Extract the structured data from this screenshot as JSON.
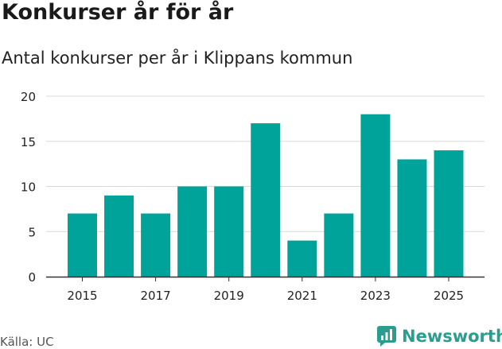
{
  "title": "Konkurser år för år",
  "subtitle": "Antal konkurser per år i Klippans kommun",
  "source": "Källa: UC",
  "brand": "Newsworthy",
  "icon": "newsworthy-logo-icon",
  "colors": {
    "bar": "#00a39a",
    "brand": "#2a9d8f",
    "grid": "#d9d9d9",
    "axis": "#333333",
    "text": "#222222"
  },
  "chart_data": {
    "type": "bar",
    "categories": [
      "2015",
      "2016",
      "2017",
      "2018",
      "2019",
      "2020",
      "2021",
      "2022",
      "2023",
      "2024",
      "2025"
    ],
    "values": [
      7,
      9,
      7,
      10,
      10,
      17,
      4,
      7,
      18,
      13,
      14
    ],
    "x_tick_labels": [
      "2015",
      "2017",
      "2019",
      "2021",
      "2023",
      "2025"
    ],
    "y_ticks": [
      0,
      5,
      10,
      15,
      20
    ],
    "ylim": [
      0,
      20
    ],
    "grid": true,
    "xlabel": "",
    "ylabel": ""
  }
}
